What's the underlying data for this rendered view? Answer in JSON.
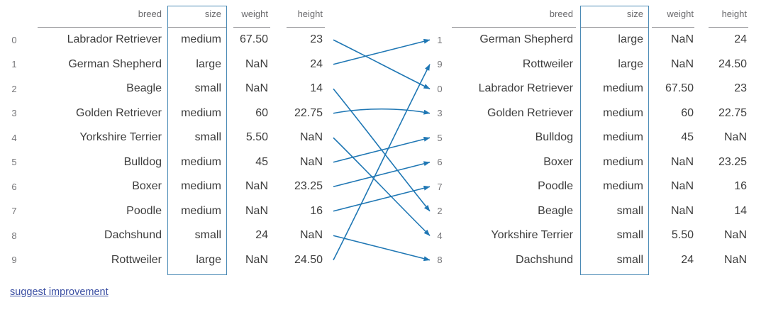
{
  "tables": {
    "columns": [
      "breed",
      "size",
      "weight",
      "height"
    ],
    "highlighted_column": "size",
    "left": {
      "rows": [
        {
          "index": "0",
          "breed": "Labrador Retriever",
          "size": "medium",
          "weight": "67.50",
          "height": "23"
        },
        {
          "index": "1",
          "breed": "German Shepherd",
          "size": "large",
          "weight": "NaN",
          "height": "24"
        },
        {
          "index": "2",
          "breed": "Beagle",
          "size": "small",
          "weight": "NaN",
          "height": "14"
        },
        {
          "index": "3",
          "breed": "Golden Retriever",
          "size": "medium",
          "weight": "60",
          "height": "22.75"
        },
        {
          "index": "4",
          "breed": "Yorkshire Terrier",
          "size": "small",
          "weight": "5.50",
          "height": "NaN"
        },
        {
          "index": "5",
          "breed": "Bulldog",
          "size": "medium",
          "weight": "45",
          "height": "NaN"
        },
        {
          "index": "6",
          "breed": "Boxer",
          "size": "medium",
          "weight": "NaN",
          "height": "23.25"
        },
        {
          "index": "7",
          "breed": "Poodle",
          "size": "medium",
          "weight": "NaN",
          "height": "16"
        },
        {
          "index": "8",
          "breed": "Dachshund",
          "size": "small",
          "weight": "24",
          "height": "NaN"
        },
        {
          "index": "9",
          "breed": "Rottweiler",
          "size": "large",
          "weight": "NaN",
          "height": "24.50"
        }
      ]
    },
    "right": {
      "rows": [
        {
          "index": "1",
          "breed": "German Shepherd",
          "size": "large",
          "weight": "NaN",
          "height": "24"
        },
        {
          "index": "9",
          "breed": "Rottweiler",
          "size": "large",
          "weight": "NaN",
          "height": "24.50"
        },
        {
          "index": "0",
          "breed": "Labrador Retriever",
          "size": "medium",
          "weight": "67.50",
          "height": "23"
        },
        {
          "index": "3",
          "breed": "Golden Retriever",
          "size": "medium",
          "weight": "60",
          "height": "22.75"
        },
        {
          "index": "5",
          "breed": "Bulldog",
          "size": "medium",
          "weight": "45",
          "height": "NaN"
        },
        {
          "index": "6",
          "breed": "Boxer",
          "size": "medium",
          "weight": "NaN",
          "height": "23.25"
        },
        {
          "index": "7",
          "breed": "Poodle",
          "size": "medium",
          "weight": "NaN",
          "height": "16"
        },
        {
          "index": "2",
          "breed": "Beagle",
          "size": "small",
          "weight": "NaN",
          "height": "14"
        },
        {
          "index": "4",
          "breed": "Yorkshire Terrier",
          "size": "small",
          "weight": "5.50",
          "height": "NaN"
        },
        {
          "index": "8",
          "breed": "Dachshund",
          "size": "small",
          "weight": "24",
          "height": "NaN"
        }
      ]
    }
  },
  "arrows": {
    "color": "#1f77b4",
    "pairs": [
      {
        "from": 0,
        "to": 2
      },
      {
        "from": 1,
        "to": 0
      },
      {
        "from": 2,
        "to": 7
      },
      {
        "from": 3,
        "to": 3
      },
      {
        "from": 4,
        "to": 8
      },
      {
        "from": 5,
        "to": 4
      },
      {
        "from": 6,
        "to": 5
      },
      {
        "from": 7,
        "to": 6
      },
      {
        "from": 8,
        "to": 9
      },
      {
        "from": 9,
        "to": 1
      }
    ]
  },
  "footer": {
    "suggest_link_label": "suggest improvement"
  },
  "colors": {
    "highlight_box_border": "#4a8ab5",
    "arrow": "#1f77b4",
    "link": "#3b4fa3",
    "header_text": "#69696c",
    "index_text": "#757578",
    "data_text": "#3d3d3d",
    "rule": "#98989b"
  }
}
